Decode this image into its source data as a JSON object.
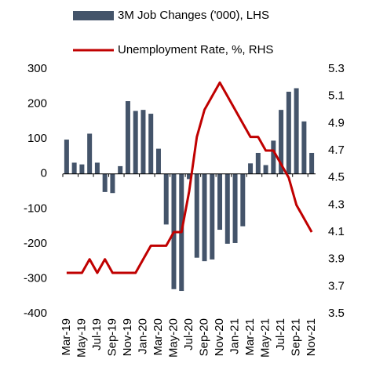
{
  "chart_data": {
    "type": "bar_line",
    "categories": [
      "Mar-19",
      null,
      "May-19",
      null,
      "Jul-19",
      null,
      "Sep-19",
      null,
      "Nov-19",
      null,
      "Jan-20",
      null,
      "Mar-20",
      null,
      "May-20",
      null,
      "Jul-20",
      null,
      "Sep-20",
      null,
      "Nov-20",
      null,
      "Jan-21",
      null,
      "Mar-21",
      null,
      "May-21",
      null,
      "Jul-21",
      null,
      "Sep-21",
      null,
      "Nov-21"
    ],
    "series": [
      {
        "name": "3M Job Changes ('000), LHS",
        "color": "#44546a",
        "type": "bar",
        "values": [
          98,
          32,
          27,
          115,
          32,
          -52,
          -55,
          22,
          208,
          180,
          183,
          172,
          72,
          -145,
          -330,
          -335,
          -15,
          -240,
          -250,
          -245,
          -160,
          -200,
          -198,
          -150,
          30,
          60,
          25,
          95,
          183,
          235,
          245,
          150,
          60
        ]
      },
      {
        "name": "Unemployment Rate, %, RHS",
        "color": "#c00000",
        "type": "line",
        "axis": "y2",
        "values": [
          3.8,
          3.8,
          3.8,
          3.9,
          3.8,
          3.9,
          3.8,
          3.8,
          3.8,
          3.8,
          3.9,
          4.0,
          4.0,
          4.0,
          4.1,
          4.1,
          4.4,
          4.8,
          5.0,
          5.1,
          5.2,
          5.1,
          5.0,
          4.9,
          4.8,
          4.8,
          4.7,
          4.7,
          4.6,
          4.5,
          4.3,
          4.2,
          4.1
        ]
      }
    ],
    "ylim": [
      -400,
      300
    ],
    "yticks": [
      -400,
      -300,
      -200,
      -100,
      0,
      100,
      200,
      300
    ],
    "y2lim": [
      3.5,
      5.3
    ],
    "y2ticks": [
      3.5,
      3.7,
      3.9,
      4.1,
      4.3,
      4.5,
      4.7,
      4.9,
      5.1,
      5.3
    ],
    "grid": false,
    "legend": "top"
  }
}
